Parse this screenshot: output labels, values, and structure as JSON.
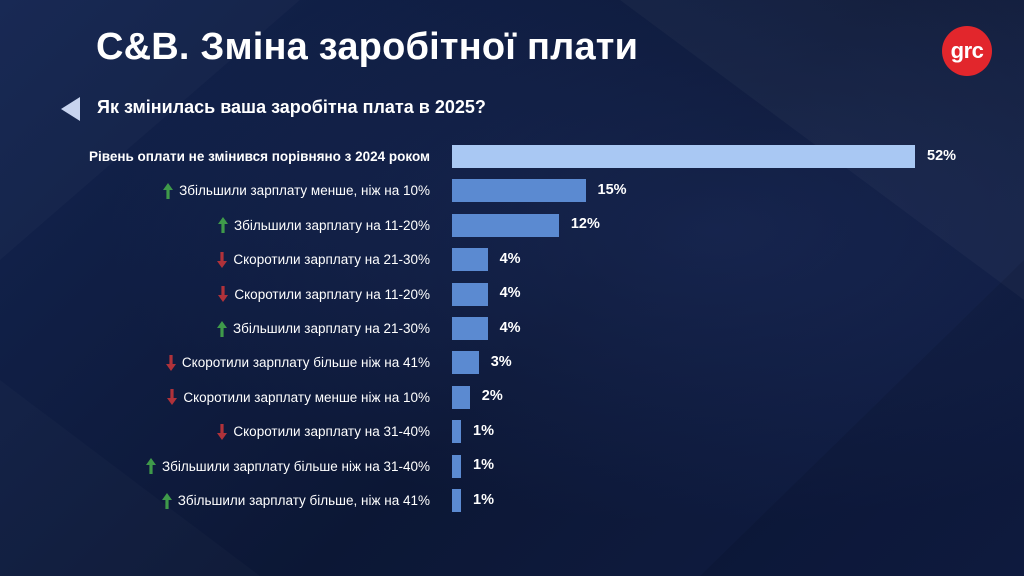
{
  "title": "C&B. Зміна заробітної плати",
  "logo_text": "grc",
  "subtitle": "Як змінилась ваша заробітна плата в 2025?",
  "colors": {
    "background": "#0f1c3f",
    "bar_highlight": "#a9c8f3",
    "bar": "#5b8ad1",
    "arrow_up": "#3f9a4a",
    "arrow_down": "#b0323a",
    "logo": "#e2262c"
  },
  "chart_data": {
    "type": "bar",
    "orientation": "horizontal",
    "title": "Як змінилась ваша заробітна плата в 2025?",
    "xlim": [
      0,
      52
    ],
    "categories": [
      "Рівень оплати не змінився порівняно з 2024 роком",
      "Збільшили зарплату менше, ніж на 10%",
      "Збільшили зарплату на 11-20%",
      "Скоротили зарплату на 21-30%",
      "Скоротили зарплату на 11-20%",
      "Збільшили зарплату на 21-30%",
      "Скоротили зарплату більше ніж на 41%",
      "Скоротили зарплату менше ніж на 10%",
      "Скоротили зарплату на 31-40%",
      "Збільшили зарплату більше ніж на 31-40%",
      "Збільшили зарплату більше, ніж на 41%"
    ],
    "values": [
      52,
      15,
      12,
      4,
      4,
      4,
      3,
      2,
      1,
      1,
      1
    ],
    "value_labels": [
      "52%",
      "15%",
      "12%",
      "4%",
      "4%",
      "4%",
      "3%",
      "2%",
      "1%",
      "1%",
      "1%"
    ],
    "direction_icons": [
      "none",
      "up-arrow-icon",
      "up-arrow-icon",
      "down-arrow-icon",
      "down-arrow-icon",
      "up-arrow-icon",
      "down-arrow-icon",
      "down-arrow-icon",
      "down-arrow-icon",
      "up-arrow-icon",
      "up-arrow-icon"
    ]
  }
}
